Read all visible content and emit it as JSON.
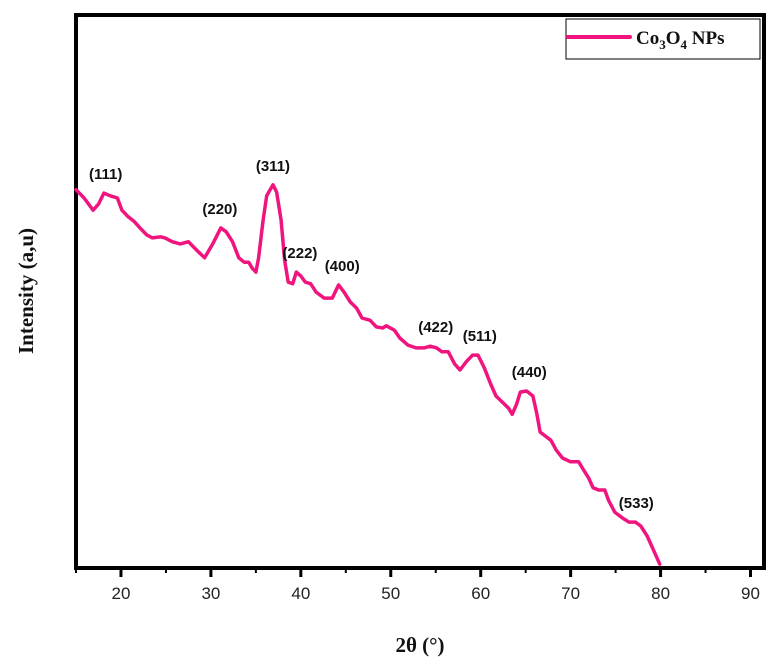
{
  "chart_data": {
    "type": "line",
    "title": "",
    "xlabel": "2θ  (°)",
    "ylabel": "Intensity (a,u)",
    "xlim": [
      15,
      91.5
    ],
    "ylim": [
      0,
      100
    ],
    "xticks": [
      20,
      30,
      40,
      50,
      60,
      70,
      80,
      90
    ],
    "xtick_labels": [
      "20",
      "30",
      "40",
      "50",
      "60",
      "70",
      "80",
      "90"
    ],
    "minor_xticks": [
      15,
      25,
      35,
      45,
      55,
      65,
      75,
      85
    ],
    "yticks": [],
    "grid": false,
    "legend": {
      "position": "top-right",
      "entries": [
        {
          "name": "Co3O4 NPs",
          "base": "Co",
          "sub1": "3",
          "mid": "O",
          "sub2": "4",
          "suffix": " NPs"
        }
      ]
    },
    "series": [
      {
        "name": "Co3O4 NPs",
        "color": "#f0147f",
        "x": [
          15.0,
          15.9,
          16.9,
          17.5,
          18.1,
          18.8,
          19.6,
          20.1,
          20.8,
          21.5,
          22.1,
          22.9,
          23.5,
          24.4,
          24.9,
          25.7,
          26.6,
          27.5,
          28.4,
          29.3,
          30.2,
          31.1,
          31.7,
          32.4,
          33.1,
          33.7,
          34.2,
          34.6,
          35.0,
          35.3,
          35.8,
          36.2,
          36.9,
          37.3,
          37.8,
          38.2,
          38.6,
          39.1,
          39.5,
          40.0,
          40.5,
          41.1,
          41.7,
          42.6,
          43.5,
          44.2,
          44.8,
          45.5,
          46.2,
          46.8,
          47.7,
          48.4,
          49.1,
          49.5,
          50.4,
          51.0,
          51.9,
          52.8,
          53.7,
          54.4,
          55.1,
          55.7,
          56.4,
          57.1,
          57.7,
          58.4,
          59.1,
          59.7,
          60.4,
          61.1,
          61.7,
          62.4,
          63.1,
          63.5,
          64.0,
          64.4,
          65.1,
          65.8,
          66.2,
          66.6,
          67.3,
          67.8,
          68.4,
          69.1,
          70.0,
          70.9,
          71.3,
          72.0,
          72.5,
          73.1,
          73.8,
          74.2,
          74.9,
          75.8,
          76.5,
          77.2,
          77.8,
          78.5,
          79.2,
          79.9
        ],
        "y": [
          68.4,
          66.9,
          64.7,
          65.8,
          67.8,
          67.3,
          66.9,
          64.7,
          63.5,
          62.6,
          61.5,
          60.2,
          59.7,
          59.9,
          59.7,
          59.0,
          58.6,
          59.0,
          57.5,
          56.1,
          58.6,
          61.5,
          60.8,
          59.0,
          56.1,
          55.3,
          55.3,
          54.2,
          53.5,
          56.1,
          62.9,
          67.3,
          69.3,
          68.0,
          62.9,
          55.7,
          51.7,
          51.4,
          53.5,
          52.8,
          51.7,
          51.4,
          49.9,
          48.8,
          48.8,
          51.2,
          49.9,
          48.1,
          47.0,
          45.2,
          44.8,
          43.6,
          43.4,
          43.8,
          43.0,
          41.6,
          40.3,
          39.8,
          39.8,
          40.1,
          39.8,
          39.1,
          39.1,
          36.9,
          35.8,
          37.3,
          38.5,
          38.5,
          36.2,
          33.3,
          31.1,
          30.0,
          28.9,
          27.8,
          29.7,
          31.8,
          32.0,
          31.1,
          28.2,
          24.6,
          23.7,
          23.1,
          21.3,
          19.9,
          19.2,
          19.2,
          18.1,
          16.3,
          14.5,
          14.1,
          14.1,
          12.3,
          10.1,
          9.0,
          8.3,
          8.3,
          7.6,
          5.8,
          3.3,
          0.7
        ]
      }
    ],
    "annotations": [
      {
        "text": "(111)",
        "x": 18.3
      },
      {
        "text": "(220)",
        "x": 31.0
      },
      {
        "text": "(311)",
        "x": 36.9
      },
      {
        "text": "(222)",
        "x": 39.9
      },
      {
        "text": "(400)",
        "x": 44.6
      },
      {
        "text": "(422)",
        "x": 55.0
      },
      {
        "text": "(511)",
        "x": 59.9
      },
      {
        "text": "(440)",
        "x": 65.4
      },
      {
        "text": "(533)",
        "x": 77.3
      }
    ]
  }
}
